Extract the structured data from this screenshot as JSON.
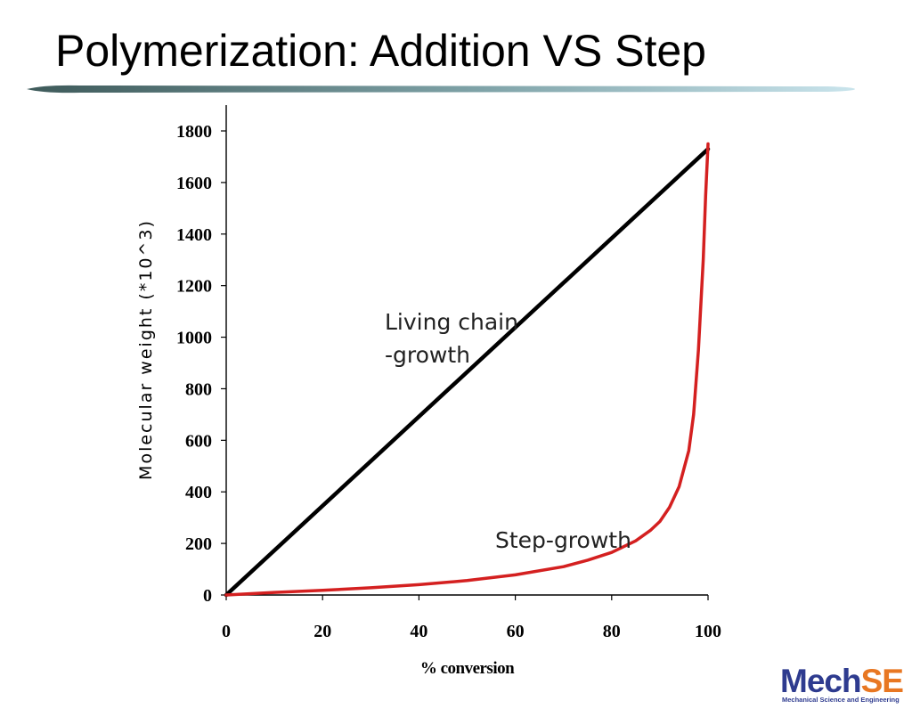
{
  "slide": {
    "title": "Polymerization: Addition VS Step"
  },
  "colors": {
    "title_rule_dark": "#3e5a5a",
    "title_rule_light": "#c9e4ec",
    "living_chain_line": "#000000",
    "step_growth_line": "#d42020",
    "logo_blue": "#2e3b8f",
    "logo_orange": "#e87722"
  },
  "logo": {
    "part_a": "Mech",
    "part_b": "SE",
    "subtitle": "Mechanical Science and Engineering"
  },
  "chart_data": {
    "type": "line",
    "title": "",
    "xlabel": "% conversion",
    "ylabel": "Molecular weight (*10^3)",
    "xlim": [
      0,
      100
    ],
    "ylim": [
      0,
      1800
    ],
    "xticks": [
      "0",
      "20",
      "40",
      "60",
      "80",
      "100"
    ],
    "yticks": [
      "0",
      "200",
      "400",
      "600",
      "800",
      "1000",
      "1200",
      "1400",
      "1600",
      "1800"
    ],
    "grid": false,
    "series": [
      {
        "name": "Living chain\n-growth",
        "annotation_lines": [
          "Living chain",
          "-growth"
        ],
        "color": "#000000",
        "x": [
          0,
          100
        ],
        "y": [
          0,
          1730
        ]
      },
      {
        "name": "Step-growth",
        "annotation_lines": [
          "Step-growth"
        ],
        "color": "#d42020",
        "x": [
          0,
          10,
          20,
          30,
          40,
          50,
          60,
          70,
          75,
          80,
          85,
          88,
          90,
          92,
          94,
          96,
          97,
          98,
          99,
          99.5,
          100
        ],
        "y": [
          0,
          10,
          18,
          28,
          40,
          56,
          78,
          110,
          135,
          165,
          210,
          250,
          285,
          340,
          420,
          560,
          700,
          950,
          1300,
          1550,
          1750
        ]
      }
    ]
  }
}
